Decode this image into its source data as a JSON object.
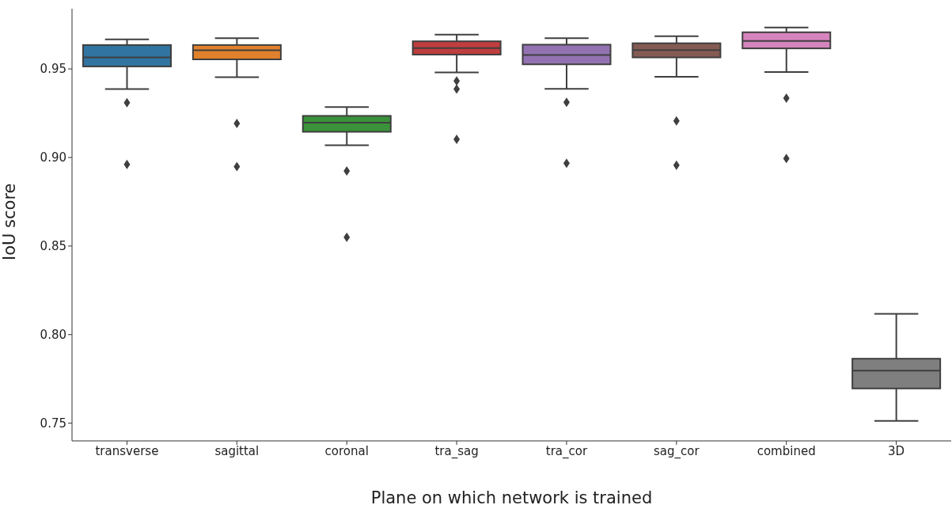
{
  "chart_data": {
    "type": "box",
    "xlabel": "Plane on which network is trained",
    "ylabel": "IoU score",
    "categories": [
      "transverse",
      "sagittal",
      "coronal",
      "tra_sag",
      "tra_cor",
      "sag_cor",
      "combined",
      "3D"
    ],
    "colors": [
      "#3274a1",
      "#e1812c",
      "#3a923a",
      "#c03d3e",
      "#9372b2",
      "#845b53",
      "#d684bd",
      "#7f7f7f"
    ],
    "boxes": [
      {
        "low": 0.9386,
        "q1": 0.9514,
        "median": 0.9565,
        "q3": 0.9635,
        "high": 0.9667,
        "outliers": [
          0.9309,
          0.8961
        ]
      },
      {
        "low": 0.9454,
        "q1": 0.9554,
        "median": 0.9605,
        "q3": 0.9635,
        "high": 0.9674,
        "outliers": [
          0.9192,
          0.8949
        ]
      },
      {
        "low": 0.9069,
        "q1": 0.9145,
        "median": 0.9196,
        "q3": 0.9235,
        "high": 0.9285,
        "outliers": [
          0.8924,
          0.855
        ]
      },
      {
        "low": 0.948,
        "q1": 0.9581,
        "median": 0.9618,
        "q3": 0.9656,
        "high": 0.9694,
        "outliers": [
          0.9432,
          0.9386,
          0.9103
        ]
      },
      {
        "low": 0.9387,
        "q1": 0.9526,
        "median": 0.9579,
        "q3": 0.9637,
        "high": 0.9674,
        "outliers": [
          0.9312,
          0.8967
        ]
      },
      {
        "low": 0.9456,
        "q1": 0.9565,
        "median": 0.9606,
        "q3": 0.9645,
        "high": 0.9685,
        "outliers": [
          0.9207,
          0.8956
        ]
      },
      {
        "low": 0.9483,
        "q1": 0.9616,
        "median": 0.9658,
        "q3": 0.9707,
        "high": 0.9734,
        "outliers": [
          0.9335,
          0.8994
        ]
      },
      {
        "low": 0.7513,
        "q1": 0.7696,
        "median": 0.7797,
        "q3": 0.7864,
        "high": 0.8117
      }
    ],
    "ylim": [
      0.74,
      0.984
    ],
    "yticks": [
      {
        "value": 0.75,
        "label": "0.75"
      },
      {
        "value": 0.8,
        "label": "0.80"
      },
      {
        "value": 0.85,
        "label": "0.85"
      },
      {
        "value": 0.9,
        "label": "0.90"
      },
      {
        "value": 0.95,
        "label": "0.95"
      }
    ]
  }
}
